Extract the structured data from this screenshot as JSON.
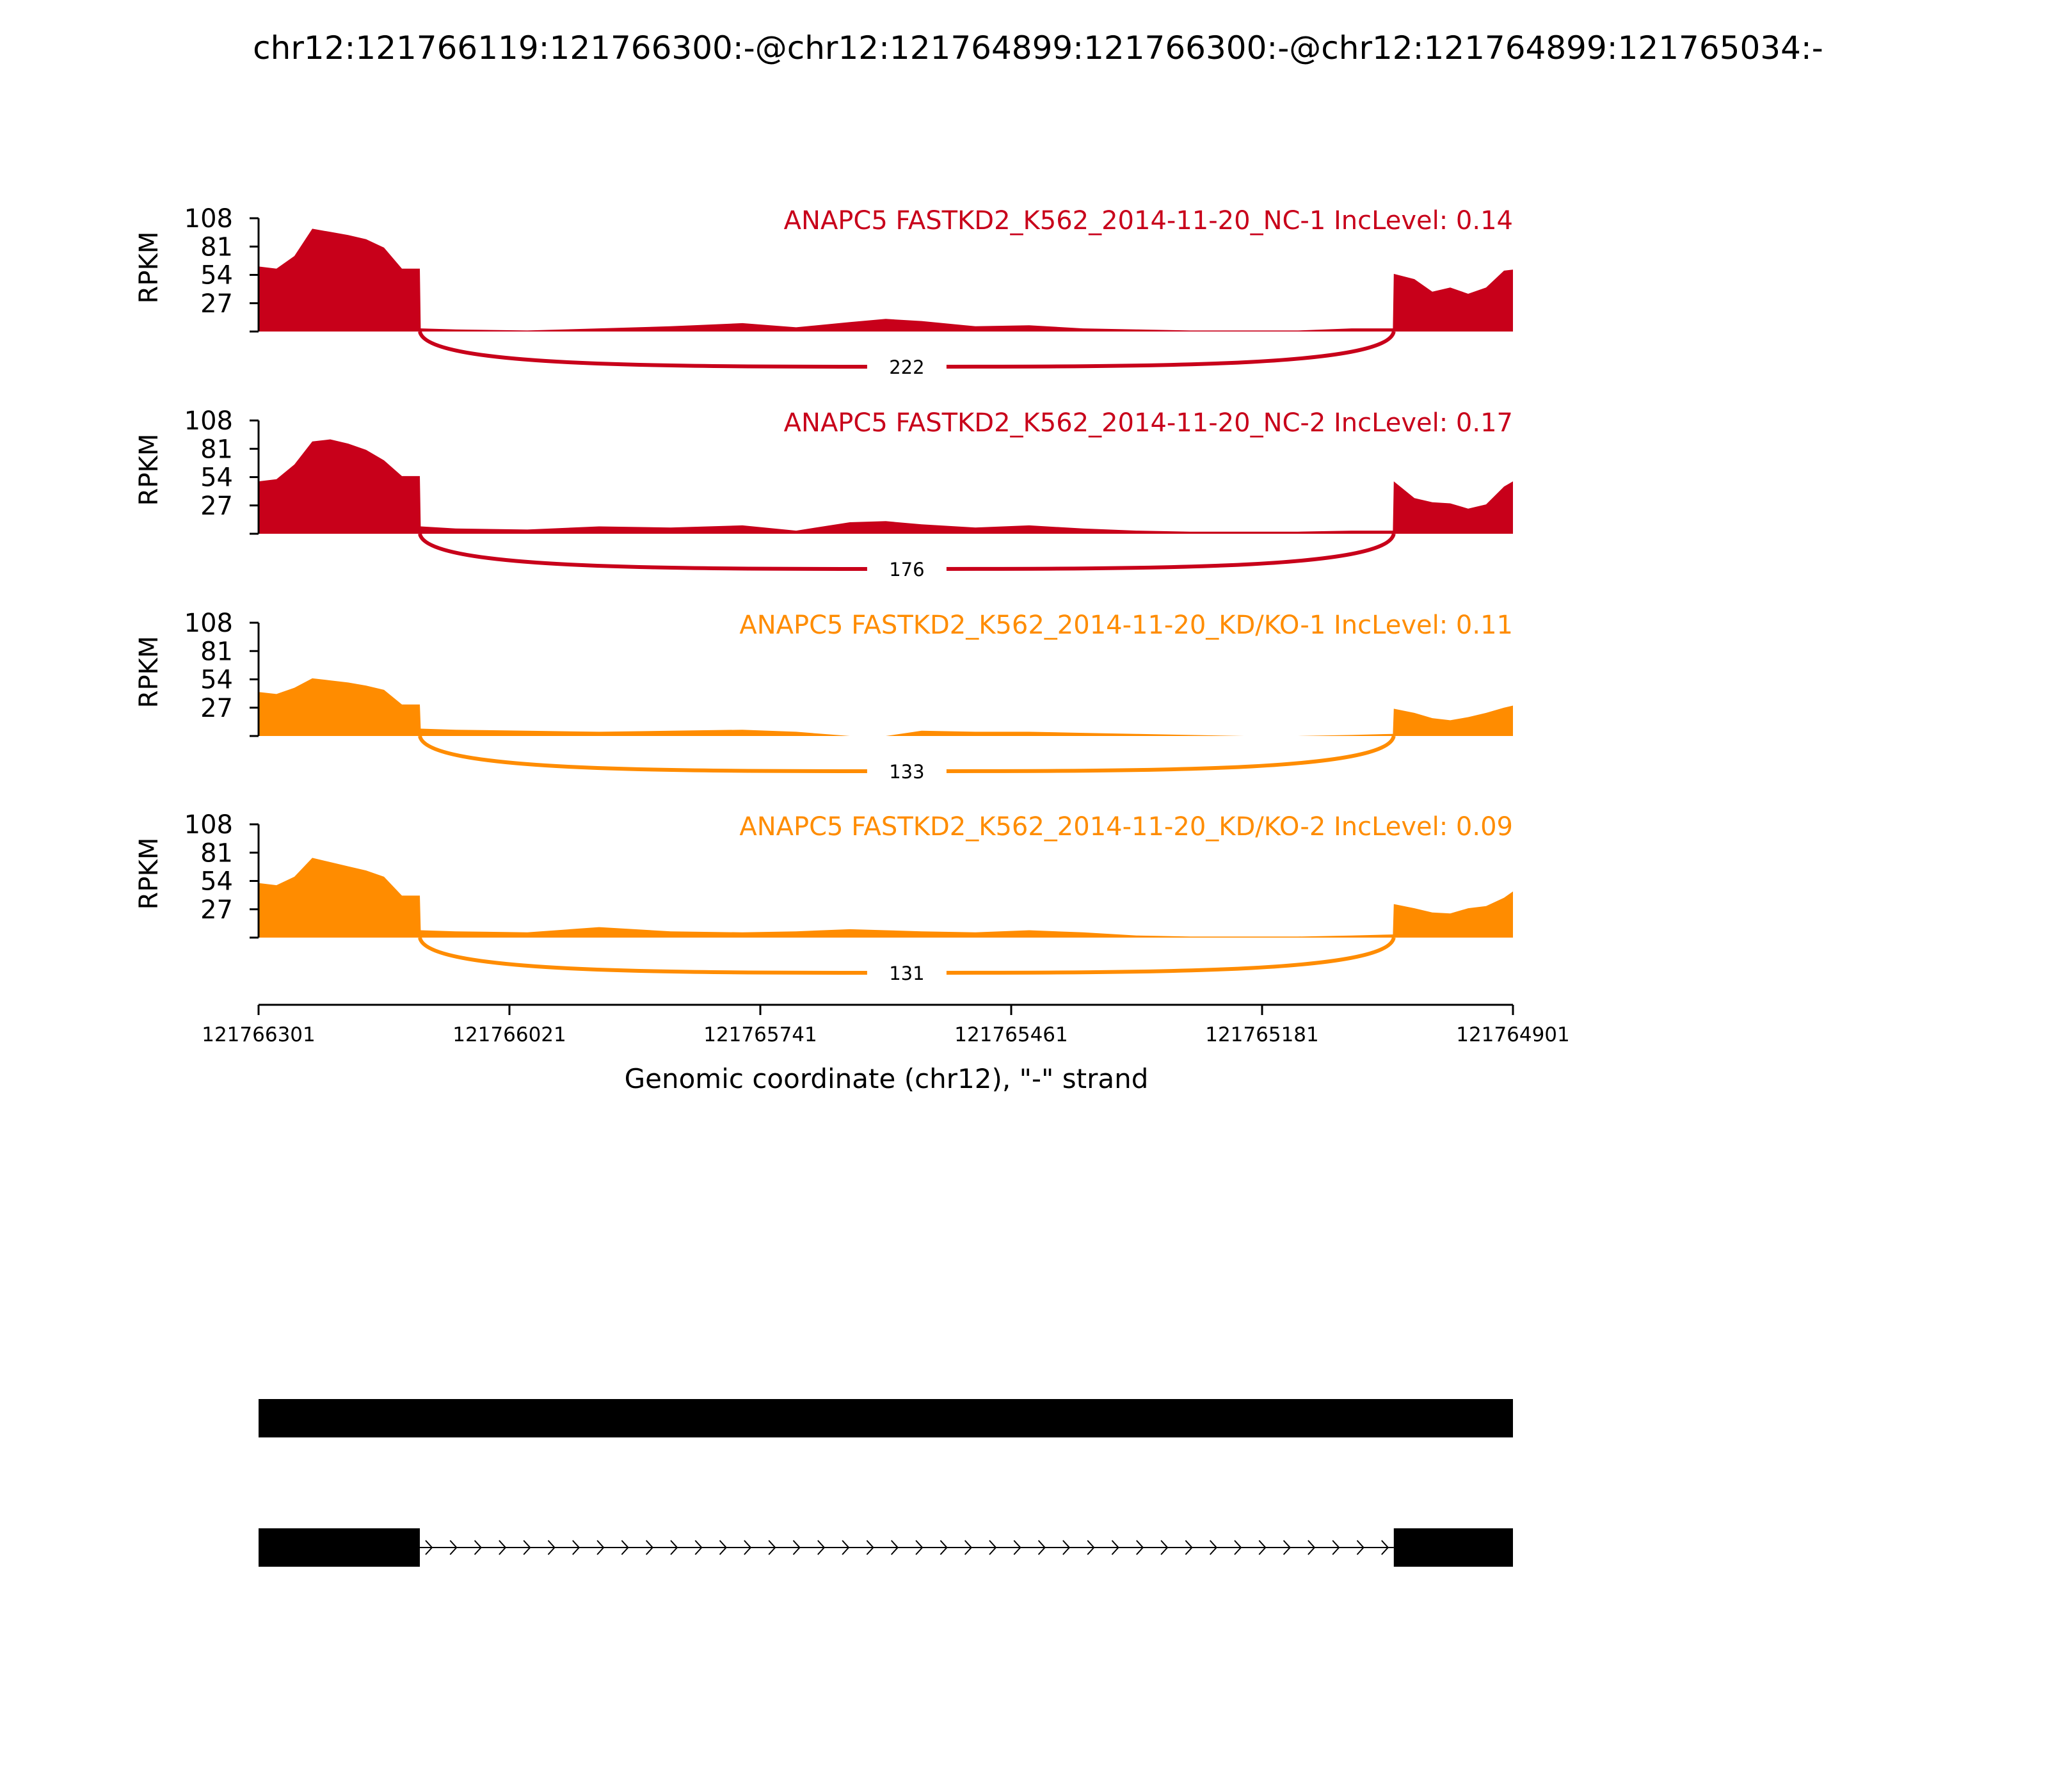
{
  "chart_data": {
    "type": "area",
    "title": "chr12:121766119:121766300:-@chr12:121764899:121766300:-@chr12:121764899:121765034:-",
    "ylabel": "RPKM",
    "xlabel": "Genomic coordinate (chr12), \"-\" strand",
    "ylim": [
      0,
      108
    ],
    "yticks": [
      27,
      54,
      81,
      108
    ],
    "xlim": [
      121766301,
      121764901
    ],
    "xticks": [
      "121766301",
      "121766021",
      "121765741",
      "121765461",
      "121765181",
      "121764901"
    ],
    "exon_upstream": [
      121766301,
      121766121
    ],
    "exon_downstream": [
      121765034,
      121764901
    ],
    "series": [
      {
        "name": "ANAPC5 FASTKD2_K562_2014-11-20_NC-1 IncLevel: 0.14",
        "color": "#c8001a",
        "junction_count": "222",
        "x": [
          121766301,
          121766281,
          121766261,
          121766241,
          121766221,
          121766201,
          121766181,
          121766161,
          121766141,
          121766121,
          121766120,
          121766081,
          121766001,
          121765921,
          121765841,
          121765761,
          121765701,
          121765641,
          121765601,
          121765561,
          121765501,
          121765441,
          121765381,
          121765321,
          121765261,
          121765201,
          121765141,
          121765081,
          121765035,
          121765034,
          121765011,
          121764991,
          121764971,
          121764951,
          121764931,
          121764911,
          121764901
        ],
        "y": [
          62,
          60,
          72,
          98,
          95,
          92,
          88,
          80,
          60,
          60,
          3,
          2,
          1,
          3,
          5,
          8,
          4,
          9,
          12,
          10,
          5,
          6,
          3,
          2,
          1,
          1,
          1,
          3,
          3,
          55,
          50,
          38,
          42,
          36,
          42,
          58,
          59
        ]
      },
      {
        "name": "ANAPC5 FASTKD2_K562_2014-11-20_NC-2 IncLevel: 0.17",
        "color": "#c8001a",
        "junction_count": "176",
        "x": [
          121766301,
          121766281,
          121766261,
          121766241,
          121766221,
          121766201,
          121766181,
          121766161,
          121766141,
          121766121,
          121766120,
          121766081,
          121766001,
          121765921,
          121765841,
          121765761,
          121765701,
          121765641,
          121765601,
          121765561,
          121765501,
          121765441,
          121765381,
          121765321,
          121765261,
          121765201,
          121765141,
          121765081,
          121765035,
          121765034,
          121765011,
          121764991,
          121764971,
          121764951,
          121764931,
          121764911,
          121764901
        ],
        "y": [
          50,
          52,
          66,
          88,
          90,
          86,
          80,
          70,
          55,
          55,
          7,
          5,
          4,
          7,
          6,
          8,
          3,
          11,
          12,
          9,
          6,
          8,
          5,
          3,
          2,
          2,
          2,
          3,
          3,
          50,
          34,
          30,
          29,
          24,
          28,
          45,
          50
        ]
      },
      {
        "name": "ANAPC5 FASTKD2_K562_2014-11-20_KD/KO-1 IncLevel: 0.11",
        "color": "#ff8c00",
        "junction_count": "133",
        "x": [
          121766301,
          121766281,
          121766261,
          121766241,
          121766221,
          121766201,
          121766181,
          121766161,
          121766141,
          121766121,
          121766120,
          121766081,
          121766001,
          121765921,
          121765841,
          121765761,
          121765701,
          121765641,
          121765601,
          121765561,
          121765501,
          121765441,
          121765381,
          121765321,
          121765261,
          121765201,
          121765141,
          121765081,
          121765035,
          121765034,
          121765011,
          121764991,
          121764971,
          121764951,
          121764931,
          121764911,
          121764901
        ],
        "y": [
          42,
          40,
          46,
          55,
          53,
          51,
          48,
          44,
          30,
          30,
          7,
          6,
          5,
          4,
          5,
          6,
          4,
          0,
          0,
          5,
          4,
          4,
          3,
          2,
          1,
          0,
          0,
          1,
          2,
          26,
          22,
          17,
          15,
          18,
          22,
          27,
          29
        ]
      },
      {
        "name": "ANAPC5 FASTKD2_K562_2014-11-20_KD/KO-2 IncLevel: 0.09",
        "color": "#ff8c00",
        "junction_count": "131",
        "x": [
          121766301,
          121766281,
          121766261,
          121766241,
          121766221,
          121766201,
          121766181,
          121766161,
          121766141,
          121766121,
          121766120,
          121766081,
          121766001,
          121765921,
          121765841,
          121765761,
          121765701,
          121765641,
          121765601,
          121765561,
          121765501,
          121765441,
          121765381,
          121765321,
          121765261,
          121765201,
          121765141,
          121765081,
          121765035,
          121765034,
          121765011,
          121764991,
          121764971,
          121764951,
          121764931,
          121764911,
          121764901
        ],
        "y": [
          52,
          50,
          58,
          76,
          72,
          68,
          64,
          58,
          40,
          40,
          7,
          6,
          5,
          10,
          6,
          5,
          6,
          8,
          7,
          6,
          5,
          7,
          5,
          2,
          1,
          1,
          1,
          2,
          3,
          32,
          28,
          24,
          23,
          28,
          30,
          38,
          44
        ]
      }
    ]
  }
}
